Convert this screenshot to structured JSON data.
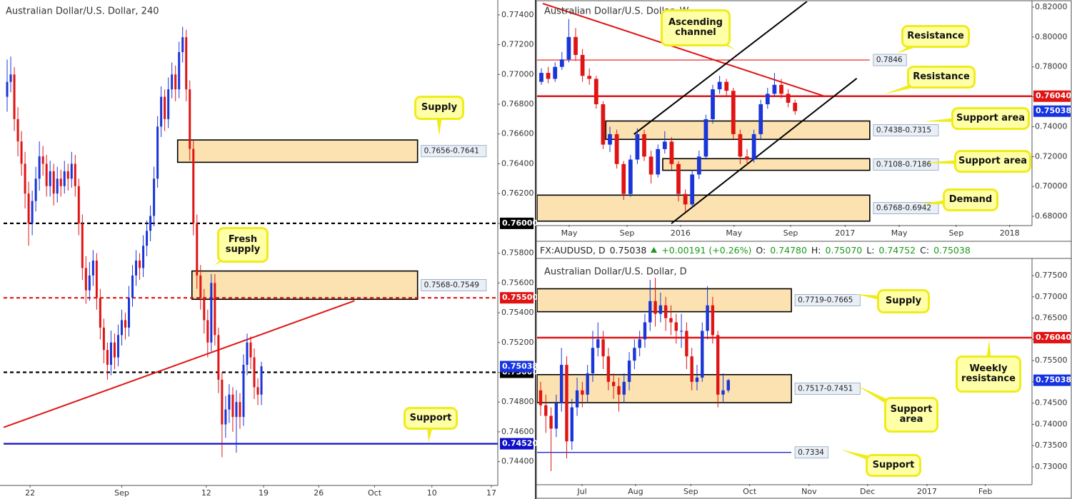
{
  "info": {
    "symbol": "FX:AUDUSD, D",
    "last": "0.75038",
    "change": "+0.00191 (+0.26%)",
    "fields": [
      {
        "label": "O:",
        "value": "0.74780"
      },
      {
        "label": "H:",
        "value": "0.75070"
      },
      {
        "label": "L:",
        "value": "0.74752"
      },
      {
        "label": "C:",
        "value": "0.75038"
      }
    ]
  },
  "chart_data": [
    {
      "type": "candlestick",
      "title": "Australian Dollar/U.S. Dollar, 240",
      "up_color": "#1a35d8",
      "down_color": "#e01414",
      "zone_color": "#fbe2b0",
      "grid": false,
      "xlim": [
        -1,
        137
      ],
      "ylim": [
        0.7424,
        0.775
      ],
      "xticks": [
        {
          "value": 6.4,
          "label": "22"
        },
        {
          "value": 32,
          "label": "Sep"
        },
        {
          "value": 55.6,
          "label": "12"
        },
        {
          "value": 71.6,
          "label": "19"
        },
        {
          "value": 87,
          "label": "26"
        },
        {
          "value": 102.6,
          "label": "Oct"
        },
        {
          "value": 118.6,
          "label": "10"
        },
        {
          "value": 135.2,
          "label": "17"
        }
      ],
      "yticks": [
        {
          "value": 0.744,
          "label": "0.74400"
        },
        {
          "value": 0.746,
          "label": "0.74600"
        },
        {
          "value": 0.748,
          "label": "0.74800"
        },
        {
          "value": 0.75,
          "label": "0.75000"
        },
        {
          "value": 0.752,
          "label": "0.75200"
        },
        {
          "value": 0.754,
          "label": "0.75400"
        },
        {
          "value": 0.756,
          "label": "0.75600"
        },
        {
          "value": 0.758,
          "label": "0.75800"
        },
        {
          "value": 0.76,
          "label": "0.76000"
        },
        {
          "value": 0.762,
          "label": "0.76200"
        },
        {
          "value": 0.764,
          "label": "0.76400"
        },
        {
          "value": 0.766,
          "label": "0.76600"
        },
        {
          "value": 0.768,
          "label": "0.76800"
        },
        {
          "value": 0.77,
          "label": "0.77000"
        },
        {
          "value": 0.772,
          "label": "0.77200"
        },
        {
          "value": 0.774,
          "label": "0.77400"
        }
      ],
      "open": [
        0.7685,
        0.7695,
        0.77,
        0.767,
        0.7655,
        0.764,
        0.762,
        0.76,
        0.7615,
        0.763,
        0.7645,
        0.764,
        0.7625,
        0.7635,
        0.762,
        0.763,
        0.7625,
        0.7635,
        0.763,
        0.764,
        0.7625,
        0.76,
        0.757,
        0.7555,
        0.7565,
        0.7575,
        0.755,
        0.753,
        0.7515,
        0.7505,
        0.752,
        0.751,
        0.7525,
        0.7535,
        0.753,
        0.755,
        0.7565,
        0.7575,
        0.757,
        0.7585,
        0.7595,
        0.7605,
        0.763,
        0.7665,
        0.7685,
        0.767,
        0.769,
        0.77,
        0.769,
        0.7715,
        0.7725,
        0.769,
        0.765,
        0.76,
        0.7565,
        0.755,
        0.7535,
        0.752,
        0.756,
        0.7525,
        0.7495,
        0.7465,
        0.7475,
        0.7485,
        0.747,
        0.748,
        0.747,
        0.7505,
        0.752,
        0.751,
        0.749,
        0.7485
      ],
      "high": [
        0.771,
        0.7712,
        0.7705,
        0.7678,
        0.7662,
        0.7648,
        0.7628,
        0.7622,
        0.7638,
        0.7655,
        0.7652,
        0.7646,
        0.7642,
        0.764,
        0.7638,
        0.7636,
        0.7642,
        0.764,
        0.7648,
        0.7646,
        0.763,
        0.7606,
        0.7578,
        0.7574,
        0.7582,
        0.758,
        0.7556,
        0.7536,
        0.752,
        0.7528,
        0.7526,
        0.7532,
        0.7542,
        0.754,
        0.7558,
        0.7572,
        0.7582,
        0.758,
        0.7592,
        0.7602,
        0.7612,
        0.7638,
        0.7672,
        0.7692,
        0.769,
        0.7698,
        0.7708,
        0.7706,
        0.7722,
        0.7732,
        0.773,
        0.7696,
        0.7656,
        0.7606,
        0.7572,
        0.7556,
        0.7542,
        0.7566,
        0.7566,
        0.753,
        0.75,
        0.7484,
        0.7492,
        0.749,
        0.7488,
        0.7486,
        0.7512,
        0.7526,
        0.7524,
        0.7516,
        0.7496,
        0.7507
      ],
      "low": [
        0.7675,
        0.7688,
        0.7662,
        0.7645,
        0.7632,
        0.761,
        0.7585,
        0.7592,
        0.7608,
        0.7622,
        0.7632,
        0.7618,
        0.7618,
        0.7612,
        0.7614,
        0.7618,
        0.762,
        0.7622,
        0.7624,
        0.7618,
        0.7592,
        0.7562,
        0.7546,
        0.7548,
        0.7558,
        0.7542,
        0.7522,
        0.7506,
        0.7495,
        0.7498,
        0.7502,
        0.7504,
        0.7518,
        0.7522,
        0.7524,
        0.7544,
        0.7558,
        0.7562,
        0.7564,
        0.7578,
        0.7588,
        0.7598,
        0.7624,
        0.7658,
        0.7662,
        0.7664,
        0.7684,
        0.7682,
        0.7684,
        0.7708,
        0.7682,
        0.7642,
        0.7592,
        0.7556,
        0.7542,
        0.7526,
        0.751,
        0.7514,
        0.7518,
        0.7486,
        0.7443,
        0.7456,
        0.7466,
        0.746,
        0.7446,
        0.7462,
        0.7464,
        0.7498,
        0.7502,
        0.7482,
        0.7478,
        0.7478
      ],
      "close": [
        0.7695,
        0.77,
        0.767,
        0.7655,
        0.764,
        0.762,
        0.76,
        0.7615,
        0.763,
        0.7645,
        0.764,
        0.7625,
        0.7635,
        0.762,
        0.763,
        0.7625,
        0.7635,
        0.763,
        0.764,
        0.7625,
        0.76,
        0.757,
        0.7555,
        0.7565,
        0.7575,
        0.755,
        0.753,
        0.7515,
        0.7505,
        0.752,
        0.751,
        0.7525,
        0.7535,
        0.753,
        0.755,
        0.7565,
        0.7575,
        0.757,
        0.7585,
        0.7595,
        0.7605,
        0.763,
        0.7665,
        0.7685,
        0.767,
        0.769,
        0.77,
        0.769,
        0.7715,
        0.7725,
        0.769,
        0.765,
        0.76,
        0.7565,
        0.755,
        0.7535,
        0.752,
        0.756,
        0.7525,
        0.7495,
        0.7465,
        0.7475,
        0.7485,
        0.747,
        0.748,
        0.747,
        0.7505,
        0.752,
        0.751,
        0.749,
        0.7485,
        0.7504
      ],
      "zones": [
        {
          "label": "0.7656-0.7641",
          "range": [
            0.7656,
            0.7641
          ],
          "x": [
            47.6,
            114.6
          ]
        },
        {
          "label": "0.7568-0.7549",
          "range": [
            0.7568,
            0.7549
          ],
          "x": [
            51.6,
            114.6
          ]
        }
      ],
      "levels": [
        {
          "value": 0.76,
          "label": "0.76000",
          "color": "#000000",
          "style": "dashed",
          "label_at": "axis"
        },
        {
          "value": 0.755,
          "label": "0.75500",
          "color": "#e01414",
          "style": "dashed",
          "label_at": "axis"
        },
        {
          "value": 0.75,
          "label": "0.75000",
          "color": "#000000",
          "style": "dashed",
          "label_at": "axis"
        },
        {
          "value": 0.7452,
          "label": "0.74520",
          "color": "#1010c8",
          "style": "solid",
          "label_at": "axis"
        }
      ],
      "price": {
        "value": 0.75038,
        "label": "0.75038",
        "color": "#1533e0"
      },
      "trendlines": [
        {
          "x": [
            -1,
            97
          ],
          "y": [
            0.7463,
            0.7548
          ],
          "color": "#e01414"
        }
      ],
      "callouts": [
        "Supply",
        "Fresh supply",
        "Support"
      ]
    },
    {
      "type": "candlestick",
      "title": "Australian Dollar/U.S. Dollar, W",
      "up_color": "#1a35d8",
      "down_color": "#e01414",
      "zone_color": "#fbe2b0",
      "grid": false,
      "xlim": [
        -0.625,
        71.56
      ],
      "ylim": [
        0.6743,
        0.8238
      ],
      "xticks": [
        {
          "value": 4.06,
          "label": "May"
        },
        {
          "value": 12.5,
          "label": "Sep"
        },
        {
          "value": 20.3,
          "label": "2016"
        },
        {
          "value": 28.1,
          "label": "May"
        },
        {
          "value": 36.35,
          "label": "Sep"
        },
        {
          "value": 44.3,
          "label": "2017"
        },
        {
          "value": 52.2,
          "label": "May"
        },
        {
          "value": 60.5,
          "label": "Sep"
        },
        {
          "value": 68.3,
          "label": "2018"
        }
      ],
      "yticks": [
        {
          "value": 0.68,
          "label": "0.68000"
        },
        {
          "value": 0.7,
          "label": "0.70000"
        },
        {
          "value": 0.72,
          "label": "0.72000"
        },
        {
          "value": 0.74,
          "label": "0.74000"
        },
        {
          "value": 0.76,
          "label": "0.76000"
        },
        {
          "value": 0.78,
          "label": "0.78000"
        },
        {
          "value": 0.8,
          "label": "0.80000"
        },
        {
          "value": 0.82,
          "label": "0.82000"
        }
      ],
      "open": [
        0.77,
        0.776,
        0.772,
        0.78,
        0.785,
        0.8,
        0.788,
        0.774,
        0.772,
        0.755,
        0.728,
        0.735,
        0.715,
        0.695,
        0.718,
        0.735,
        0.72,
        0.708,
        0.725,
        0.73,
        0.715,
        0.695,
        0.688,
        0.708,
        0.72,
        0.745,
        0.765,
        0.77,
        0.764,
        0.735,
        0.72,
        0.718,
        0.735,
        0.755,
        0.762,
        0.768,
        0.762,
        0.756
      ],
      "high": [
        0.779,
        0.78,
        0.783,
        0.79,
        0.812,
        0.806,
        0.792,
        0.779,
        0.774,
        0.757,
        0.74,
        0.738,
        0.717,
        0.721,
        0.739,
        0.738,
        0.724,
        0.728,
        0.737,
        0.733,
        0.717,
        0.698,
        0.711,
        0.724,
        0.748,
        0.768,
        0.774,
        0.772,
        0.766,
        0.738,
        0.725,
        0.738,
        0.758,
        0.766,
        0.776,
        0.772,
        0.765,
        0.758
      ],
      "low": [
        0.768,
        0.769,
        0.77,
        0.778,
        0.783,
        0.784,
        0.77,
        0.768,
        0.752,
        0.725,
        0.723,
        0.712,
        0.691,
        0.693,
        0.715,
        0.717,
        0.702,
        0.706,
        0.722,
        0.711,
        0.69,
        0.683,
        0.686,
        0.705,
        0.718,
        0.742,
        0.762,
        0.76,
        0.732,
        0.715,
        0.714,
        0.716,
        0.732,
        0.752,
        0.76,
        0.759,
        0.753,
        0.748
      ],
      "close": [
        0.776,
        0.772,
        0.78,
        0.785,
        0.8,
        0.788,
        0.774,
        0.772,
        0.755,
        0.728,
        0.735,
        0.715,
        0.695,
        0.718,
        0.735,
        0.72,
        0.708,
        0.725,
        0.73,
        0.715,
        0.695,
        0.688,
        0.708,
        0.72,
        0.745,
        0.765,
        0.77,
        0.764,
        0.735,
        0.72,
        0.718,
        0.735,
        0.755,
        0.762,
        0.768,
        0.762,
        0.756,
        0.7504
      ],
      "zones": [
        {
          "label": "0.7438-0.7315",
          "range": [
            0.7438,
            0.7315
          ],
          "x": [
            9.4,
            47.9
          ]
        },
        {
          "label": "0.7108-0.7186",
          "range": [
            0.7108,
            0.7186
          ],
          "x": [
            17.7,
            47.9
          ]
        },
        {
          "label": "0.6768-0.6942",
          "range": [
            0.6768,
            0.6942
          ],
          "x": [
            -0.625,
            47.9
          ]
        }
      ],
      "levels": [
        {
          "value": 0.7846,
          "label": "0.7846",
          "color": "#e01414",
          "style": "thin",
          "label_at": "end",
          "x": [
            -0.625,
            47.9
          ]
        },
        {
          "value": 0.7604,
          "label": "0.76040",
          "color": "#e01414",
          "style": "thick",
          "label_at": "axis"
        }
      ],
      "price": {
        "value": 0.75038,
        "label": "0.75038",
        "color": "#1533e0"
      },
      "trendlines": [
        {
          "x": [
            0.21,
            41.35
          ],
          "y": [
            0.8224,
            0.7603
          ],
          "color": "#e01414"
        },
        {
          "x": [
            18.96,
            46.0
          ],
          "y": [
            0.6752,
            0.7723
          ],
          "color": "#000000"
        },
        {
          "x": [
            13.5,
            38.75
          ],
          "y": [
            0.7349,
            0.8238
          ],
          "color": "#000000"
        }
      ],
      "callouts": [
        "Ascending channel",
        "Resistance",
        "Resistance",
        "Support area",
        "Support area",
        "Demand"
      ]
    },
    {
      "type": "candlestick",
      "title": "Australian Dollar/U.S. Dollar, D",
      "up_color": "#1a35d8",
      "down_color": "#e01414",
      "zone_color": "#fbe2b0",
      "grid": false,
      "xlim": [
        -0.68,
        94.25
      ],
      "ylim": [
        0.72597,
        0.77853
      ],
      "xticks": [
        {
          "value": 7.95,
          "label": "Jul"
        },
        {
          "value": 18.2,
          "label": "Aug"
        },
        {
          "value": 28.8,
          "label": "Sep"
        },
        {
          "value": 40.1,
          "label": "Oct"
        },
        {
          "value": 51.5,
          "label": "Nov"
        },
        {
          "value": 62.7,
          "label": "Dec"
        },
        {
          "value": 74.1,
          "label": "2017"
        },
        {
          "value": 85.3,
          "label": "Feb"
        }
      ],
      "yticks": [
        {
          "value": 0.73,
          "label": "0.73000"
        },
        {
          "value": 0.735,
          "label": "0.73500"
        },
        {
          "value": 0.74,
          "label": "0.74000"
        },
        {
          "value": 0.745,
          "label": "0.74500"
        },
        {
          "value": 0.75,
          "label": "0.75000"
        },
        {
          "value": 0.755,
          "label": "0.75500"
        },
        {
          "value": 0.76,
          "label": "0.76000"
        },
        {
          "value": 0.765,
          "label": "0.76500"
        },
        {
          "value": 0.77,
          "label": "0.77000"
        },
        {
          "value": 0.775,
          "label": "0.77500"
        }
      ],
      "open": [
        0.748,
        0.7445,
        0.742,
        0.739,
        0.745,
        0.754,
        0.736,
        0.744,
        0.748,
        0.747,
        0.752,
        0.758,
        0.76,
        0.756,
        0.75,
        0.749,
        0.747,
        0.75,
        0.755,
        0.758,
        0.76,
        0.764,
        0.769,
        0.766,
        0.768,
        0.765,
        0.764,
        0.762,
        0.762,
        0.756,
        0.75,
        0.751,
        0.762,
        0.768,
        0.761,
        0.747,
        0.748
      ],
      "high": [
        0.75,
        0.747,
        0.744,
        0.747,
        0.758,
        0.756,
        0.746,
        0.751,
        0.75,
        0.754,
        0.762,
        0.764,
        0.762,
        0.758,
        0.752,
        0.751,
        0.752,
        0.757,
        0.76,
        0.762,
        0.766,
        0.774,
        0.7745,
        0.771,
        0.77,
        0.768,
        0.766,
        0.766,
        0.764,
        0.758,
        0.754,
        0.764,
        0.7725,
        0.77,
        0.762,
        0.752,
        0.7507
      ],
      "low": [
        0.742,
        0.738,
        0.729,
        0.737,
        0.743,
        0.732,
        0.734,
        0.742,
        0.744,
        0.745,
        0.75,
        0.756,
        0.753,
        0.748,
        0.746,
        0.743,
        0.745,
        0.748,
        0.753,
        0.756,
        0.758,
        0.762,
        0.763,
        0.764,
        0.762,
        0.761,
        0.759,
        0.758,
        0.753,
        0.748,
        0.748,
        0.75,
        0.76,
        0.759,
        0.744,
        0.745,
        0.7475
      ],
      "close": [
        0.7445,
        0.742,
        0.739,
        0.745,
        0.754,
        0.736,
        0.744,
        0.748,
        0.747,
        0.752,
        0.758,
        0.76,
        0.756,
        0.75,
        0.749,
        0.747,
        0.75,
        0.755,
        0.758,
        0.76,
        0.764,
        0.769,
        0.766,
        0.768,
        0.765,
        0.764,
        0.762,
        0.762,
        0.756,
        0.75,
        0.751,
        0.762,
        0.768,
        0.761,
        0.747,
        0.748,
        0.7504
      ],
      "zones": [
        {
          "label": "0.7719-0.7665",
          "range": [
            0.7719,
            0.7665
          ],
          "x": [
            -0.68,
            48.1
          ]
        },
        {
          "label": "0.7517-0.7451",
          "range": [
            0.7517,
            0.7451
          ],
          "x": [
            -0.68,
            48.1
          ]
        }
      ],
      "levels": [
        {
          "value": 0.7604,
          "label": "0.76040",
          "color": "#e01414",
          "style": "thick",
          "label_at": "axis"
        },
        {
          "value": 0.7334,
          "label": "0.7334",
          "color": "#1010c8",
          "style": "thin",
          "label_at": "end",
          "x": [
            -0.68,
            48.1
          ]
        }
      ],
      "price": {
        "value": 0.75038,
        "label": "0.75038",
        "color": "#1533e0"
      },
      "trendlines": [],
      "callouts": [
        "Supply",
        "Weekly resistance",
        "Support area",
        "Support"
      ]
    }
  ]
}
